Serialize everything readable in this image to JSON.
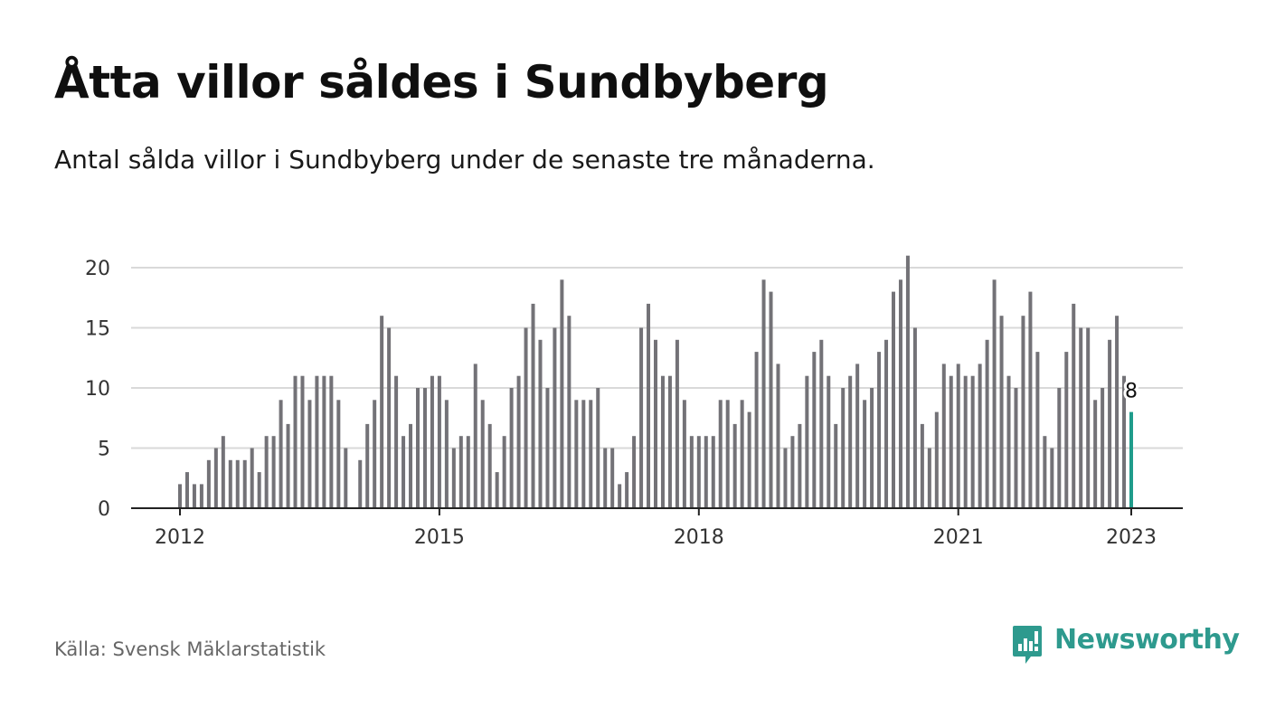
{
  "header": {
    "title": "Åtta villor såldes i Sundbyberg",
    "subtitle": "Antal sålda villor i Sundbyberg under de senaste tre månaderna."
  },
  "footer": {
    "source": "Källa: Svensk Mäklarstatistik",
    "brand": "Newsworthy",
    "brand_color": "#2e9a8e"
  },
  "chart_data": {
    "type": "bar",
    "title": "Åtta villor såldes i Sundbyberg",
    "subtitle": "Antal sålda villor i Sundbyberg under de senaste tre månaderna.",
    "xlabel": "",
    "ylabel": "",
    "x_range": [
      "2012-01",
      "2023-01"
    ],
    "ylim": [
      0,
      22
    ],
    "yticks": [
      0,
      5,
      10,
      15,
      20
    ],
    "xticks": [
      {
        "label": "2012",
        "date": "2012-01"
      },
      {
        "label": "2015",
        "date": "2015-01"
      },
      {
        "label": "2018",
        "date": "2018-01"
      },
      {
        "label": "2021",
        "date": "2021-01"
      },
      {
        "label": "2023",
        "date": "2023-01"
      }
    ],
    "grid": true,
    "bar_color": "#737277",
    "highlight_color": "#1f9c8b",
    "highlight": {
      "date": "2023-01",
      "value": 8,
      "label": "8"
    },
    "series": [
      {
        "values": [
          {
            "date": "2012-01",
            "value": 2
          },
          {
            "date": "2012-02",
            "value": 3
          },
          {
            "date": "2012-03",
            "value": 2
          },
          {
            "date": "2012-04",
            "value": 2
          },
          {
            "date": "2012-05",
            "value": 4
          },
          {
            "date": "2012-06",
            "value": 5
          },
          {
            "date": "2012-07",
            "value": 6
          },
          {
            "date": "2012-08",
            "value": 4
          },
          {
            "date": "2012-09",
            "value": 4
          },
          {
            "date": "2012-10",
            "value": 4
          },
          {
            "date": "2012-11",
            "value": 5
          },
          {
            "date": "2012-12",
            "value": 3
          },
          {
            "date": "2013-01",
            "value": 6
          },
          {
            "date": "2013-02",
            "value": 6
          },
          {
            "date": "2013-03",
            "value": 9
          },
          {
            "date": "2013-04",
            "value": 7
          },
          {
            "date": "2013-05",
            "value": 11
          },
          {
            "date": "2013-06",
            "value": 11
          },
          {
            "date": "2013-07",
            "value": 9
          },
          {
            "date": "2013-08",
            "value": 11
          },
          {
            "date": "2013-09",
            "value": 11
          },
          {
            "date": "2013-10",
            "value": 11
          },
          {
            "date": "2013-11",
            "value": 9
          },
          {
            "date": "2013-12",
            "value": 5
          },
          {
            "date": "2014-01",
            "value": 0
          },
          {
            "date": "2014-02",
            "value": 4
          },
          {
            "date": "2014-03",
            "value": 7
          },
          {
            "date": "2014-04",
            "value": 9
          },
          {
            "date": "2014-05",
            "value": 16
          },
          {
            "date": "2014-06",
            "value": 15
          },
          {
            "date": "2014-07",
            "value": 11
          },
          {
            "date": "2014-08",
            "value": 6
          },
          {
            "date": "2014-09",
            "value": 7
          },
          {
            "date": "2014-10",
            "value": 10
          },
          {
            "date": "2014-11",
            "value": 10
          },
          {
            "date": "2014-12",
            "value": 11
          },
          {
            "date": "2015-01",
            "value": 11
          },
          {
            "date": "2015-02",
            "value": 9
          },
          {
            "date": "2015-03",
            "value": 5
          },
          {
            "date": "2015-04",
            "value": 6
          },
          {
            "date": "2015-05",
            "value": 6
          },
          {
            "date": "2015-06",
            "value": 12
          },
          {
            "date": "2015-07",
            "value": 9
          },
          {
            "date": "2015-08",
            "value": 7
          },
          {
            "date": "2015-09",
            "value": 3
          },
          {
            "date": "2015-10",
            "value": 6
          },
          {
            "date": "2015-11",
            "value": 10
          },
          {
            "date": "2015-12",
            "value": 11
          },
          {
            "date": "2016-01",
            "value": 15
          },
          {
            "date": "2016-02",
            "value": 17
          },
          {
            "date": "2016-03",
            "value": 14
          },
          {
            "date": "2016-04",
            "value": 10
          },
          {
            "date": "2016-05",
            "value": 15
          },
          {
            "date": "2016-06",
            "value": 19
          },
          {
            "date": "2016-07",
            "value": 16
          },
          {
            "date": "2016-08",
            "value": 9
          },
          {
            "date": "2016-09",
            "value": 9
          },
          {
            "date": "2016-10",
            "value": 9
          },
          {
            "date": "2016-11",
            "value": 10
          },
          {
            "date": "2016-12",
            "value": 5
          },
          {
            "date": "2017-01",
            "value": 5
          },
          {
            "date": "2017-02",
            "value": 2
          },
          {
            "date": "2017-03",
            "value": 3
          },
          {
            "date": "2017-04",
            "value": 6
          },
          {
            "date": "2017-05",
            "value": 15
          },
          {
            "date": "2017-06",
            "value": 17
          },
          {
            "date": "2017-07",
            "value": 14
          },
          {
            "date": "2017-08",
            "value": 11
          },
          {
            "date": "2017-09",
            "value": 11
          },
          {
            "date": "2017-10",
            "value": 14
          },
          {
            "date": "2017-11",
            "value": 9
          },
          {
            "date": "2017-12",
            "value": 6
          },
          {
            "date": "2018-01",
            "value": 6
          },
          {
            "date": "2018-02",
            "value": 6
          },
          {
            "date": "2018-03",
            "value": 6
          },
          {
            "date": "2018-04",
            "value": 9
          },
          {
            "date": "2018-05",
            "value": 9
          },
          {
            "date": "2018-06",
            "value": 7
          },
          {
            "date": "2018-07",
            "value": 9
          },
          {
            "date": "2018-08",
            "value": 8
          },
          {
            "date": "2018-09",
            "value": 13
          },
          {
            "date": "2018-10",
            "value": 19
          },
          {
            "date": "2018-11",
            "value": 18
          },
          {
            "date": "2018-12",
            "value": 12
          },
          {
            "date": "2019-01",
            "value": 5
          },
          {
            "date": "2019-02",
            "value": 6
          },
          {
            "date": "2019-03",
            "value": 7
          },
          {
            "date": "2019-04",
            "value": 11
          },
          {
            "date": "2019-05",
            "value": 13
          },
          {
            "date": "2019-06",
            "value": 14
          },
          {
            "date": "2019-07",
            "value": 11
          },
          {
            "date": "2019-08",
            "value": 7
          },
          {
            "date": "2019-09",
            "value": 10
          },
          {
            "date": "2019-10",
            "value": 11
          },
          {
            "date": "2019-11",
            "value": 12
          },
          {
            "date": "2019-12",
            "value": 9
          },
          {
            "date": "2020-01",
            "value": 10
          },
          {
            "date": "2020-02",
            "value": 13
          },
          {
            "date": "2020-03",
            "value": 14
          },
          {
            "date": "2020-04",
            "value": 18
          },
          {
            "date": "2020-05",
            "value": 19
          },
          {
            "date": "2020-06",
            "value": 21
          },
          {
            "date": "2020-07",
            "value": 15
          },
          {
            "date": "2020-08",
            "value": 7
          },
          {
            "date": "2020-09",
            "value": 5
          },
          {
            "date": "2020-10",
            "value": 8
          },
          {
            "date": "2020-11",
            "value": 12
          },
          {
            "date": "2020-12",
            "value": 11
          },
          {
            "date": "2021-01",
            "value": 12
          },
          {
            "date": "2021-02",
            "value": 11
          },
          {
            "date": "2021-03",
            "value": 11
          },
          {
            "date": "2021-04",
            "value": 12
          },
          {
            "date": "2021-05",
            "value": 14
          },
          {
            "date": "2021-06",
            "value": 19
          },
          {
            "date": "2021-07",
            "value": 16
          },
          {
            "date": "2021-08",
            "value": 11
          },
          {
            "date": "2021-09",
            "value": 10
          },
          {
            "date": "2021-10",
            "value": 16
          },
          {
            "date": "2021-11",
            "value": 18
          },
          {
            "date": "2021-12",
            "value": 13
          },
          {
            "date": "2022-01",
            "value": 6
          },
          {
            "date": "2022-02",
            "value": 5
          },
          {
            "date": "2022-03",
            "value": 10
          },
          {
            "date": "2022-04",
            "value": 13
          },
          {
            "date": "2022-05",
            "value": 17
          },
          {
            "date": "2022-06",
            "value": 15
          },
          {
            "date": "2022-07",
            "value": 15
          },
          {
            "date": "2022-08",
            "value": 9
          },
          {
            "date": "2022-09",
            "value": 10
          },
          {
            "date": "2022-10",
            "value": 14
          },
          {
            "date": "2022-11",
            "value": 16
          },
          {
            "date": "2022-12",
            "value": 11
          },
          {
            "date": "2023-01",
            "value": 8
          }
        ]
      }
    ]
  }
}
